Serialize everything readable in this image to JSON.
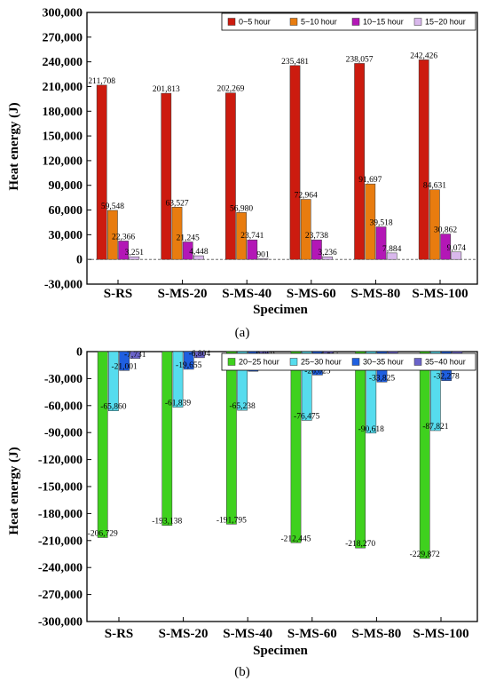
{
  "chart_data": [
    {
      "type": "bar",
      "panel_label": "(a)",
      "xlabel": "Specimen",
      "ylabel": "Heat energy (J)",
      "ylim": [
        -30000,
        300000
      ],
      "yticks": [
        "-30,000",
        "0",
        "30,000",
        "60,000",
        "90,000",
        "120,000",
        "150,000",
        "180,000",
        "210,000",
        "240,000",
        "270,000",
        "300,000"
      ],
      "categories": [
        "S-RS",
        "S-MS-20",
        "S-MS-40",
        "S-MS-60",
        "S-MS-80",
        "S-MS-100"
      ],
      "legend_position": "top-right",
      "baseline_dashed": true,
      "series": [
        {
          "name": "0~5 hour",
          "color": "#cc1b0f",
          "values": [
            211708,
            201813,
            202269,
            235481,
            238057,
            242426
          ],
          "labels": [
            "211,708",
            "201,813",
            "202,269",
            "235,481",
            "238,057",
            "242,426"
          ]
        },
        {
          "name": "5~10 hour",
          "color": "#e87c0f",
          "values": [
            59548,
            63527,
            56980,
            72964,
            91697,
            84631
          ],
          "labels": [
            "59,548",
            "63,527",
            "56,980",
            "72,964",
            "91,697",
            "84,631"
          ]
        },
        {
          "name": "10~15 hour",
          "color": "#b317b6",
          "values": [
            22366,
            21245,
            23741,
            23738,
            39518,
            30862
          ],
          "labels": [
            "22,366",
            "21,245",
            "23,741",
            "23,738",
            "39,518",
            "30,862"
          ]
        },
        {
          "name": "15~20 hour",
          "color": "#d9b8ec",
          "values": [
            3251,
            4448,
            901,
            3236,
            7884,
            9074
          ],
          "labels": [
            "3,251",
            "4,448",
            "901",
            "3,236",
            "7,884",
            "9,074"
          ]
        }
      ]
    },
    {
      "type": "bar",
      "panel_label": "(b)",
      "xlabel": "Specimen",
      "ylabel": "Heat energy (J)",
      "ylim": [
        -300000,
        0
      ],
      "yticks": [
        "0",
        "-30,000",
        "-60,000",
        "-90,000",
        "-120,000",
        "-150,000",
        "-180,000",
        "-210,000",
        "-240,000",
        "-270,000",
        "-300,000"
      ],
      "categories": [
        "S-RS",
        "S-MS-20",
        "S-MS-40",
        "S-MS-60",
        "S-MS-80",
        "S-MS-100"
      ],
      "legend_position": "top-right",
      "series": [
        {
          "name": "20~25 hour",
          "color": "#3fd11e",
          "values": [
            -206729,
            -193138,
            -191795,
            -212445,
            -218270,
            -229872
          ],
          "labels": [
            "-206,729",
            "-193,138",
            "-191,795",
            "-212,445",
            "-218,270",
            "-229,872"
          ]
        },
        {
          "name": "25~30 hour",
          "color": "#56dcee",
          "values": [
            -65860,
            -61839,
            -65238,
            -76475,
            -90618,
            -87821
          ],
          "labels": [
            "-65,860",
            "-61,839",
            "-65,238",
            "-76,475",
            "-90,618",
            "-87,821"
          ]
        },
        {
          "name": "30~35 hour",
          "color": "#1f5fe0",
          "values": [
            -21001,
            -19655,
            -21885,
            -26025,
            -33825,
            -32278
          ],
          "labels": [
            "-21,001",
            "-19,655",
            "-21,885",
            "-26,025",
            "-33,825",
            "-32,278"
          ]
        },
        {
          "name": "35~40 hour",
          "color": "#6a63c9",
          "values": [
            -7731,
            -6804,
            -8069,
            -9501,
            -13049,
            -11874
          ],
          "labels": [
            "-7,731",
            "-6,804",
            "-8,069",
            "-9,501",
            "-13,049",
            "-11,874"
          ]
        }
      ]
    }
  ]
}
